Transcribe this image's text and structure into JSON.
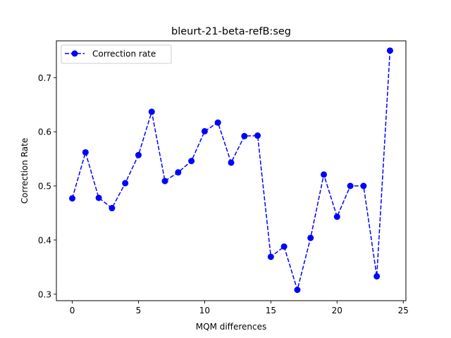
{
  "chart_data": {
    "type": "line",
    "title": "bleurt-21-beta-refB:seg",
    "xlabel": "MQM differences",
    "ylabel": "Correction Rate",
    "xlim": [
      -1.2,
      25.2
    ],
    "ylim": [
      0.288,
      0.768
    ],
    "xticks": [
      0,
      5,
      10,
      15,
      20,
      25
    ],
    "yticks": [
      0.3,
      0.4,
      0.5,
      0.6,
      0.7
    ],
    "ytick_labels": [
      "0.3",
      "0.4",
      "0.5",
      "0.6",
      "0.7"
    ],
    "grid": false,
    "legend_position": "top-left",
    "series": [
      {
        "name": "Correction rate",
        "color": "#0000ff",
        "line_style": "dashed",
        "marker": "circle",
        "x": [
          0,
          1,
          2,
          3,
          4,
          5,
          6,
          7,
          8,
          9,
          10,
          11,
          12,
          13,
          14,
          15,
          16,
          17,
          18,
          19,
          20,
          21,
          22,
          23,
          24
        ],
        "y": [
          0.477,
          0.562,
          0.478,
          0.459,
          0.505,
          0.557,
          0.637,
          0.509,
          0.525,
          0.546,
          0.601,
          0.617,
          0.543,
          0.592,
          0.593,
          0.369,
          0.388,
          0.308,
          0.404,
          0.521,
          0.443,
          0.5,
          0.5,
          0.333,
          0.75
        ]
      }
    ]
  }
}
